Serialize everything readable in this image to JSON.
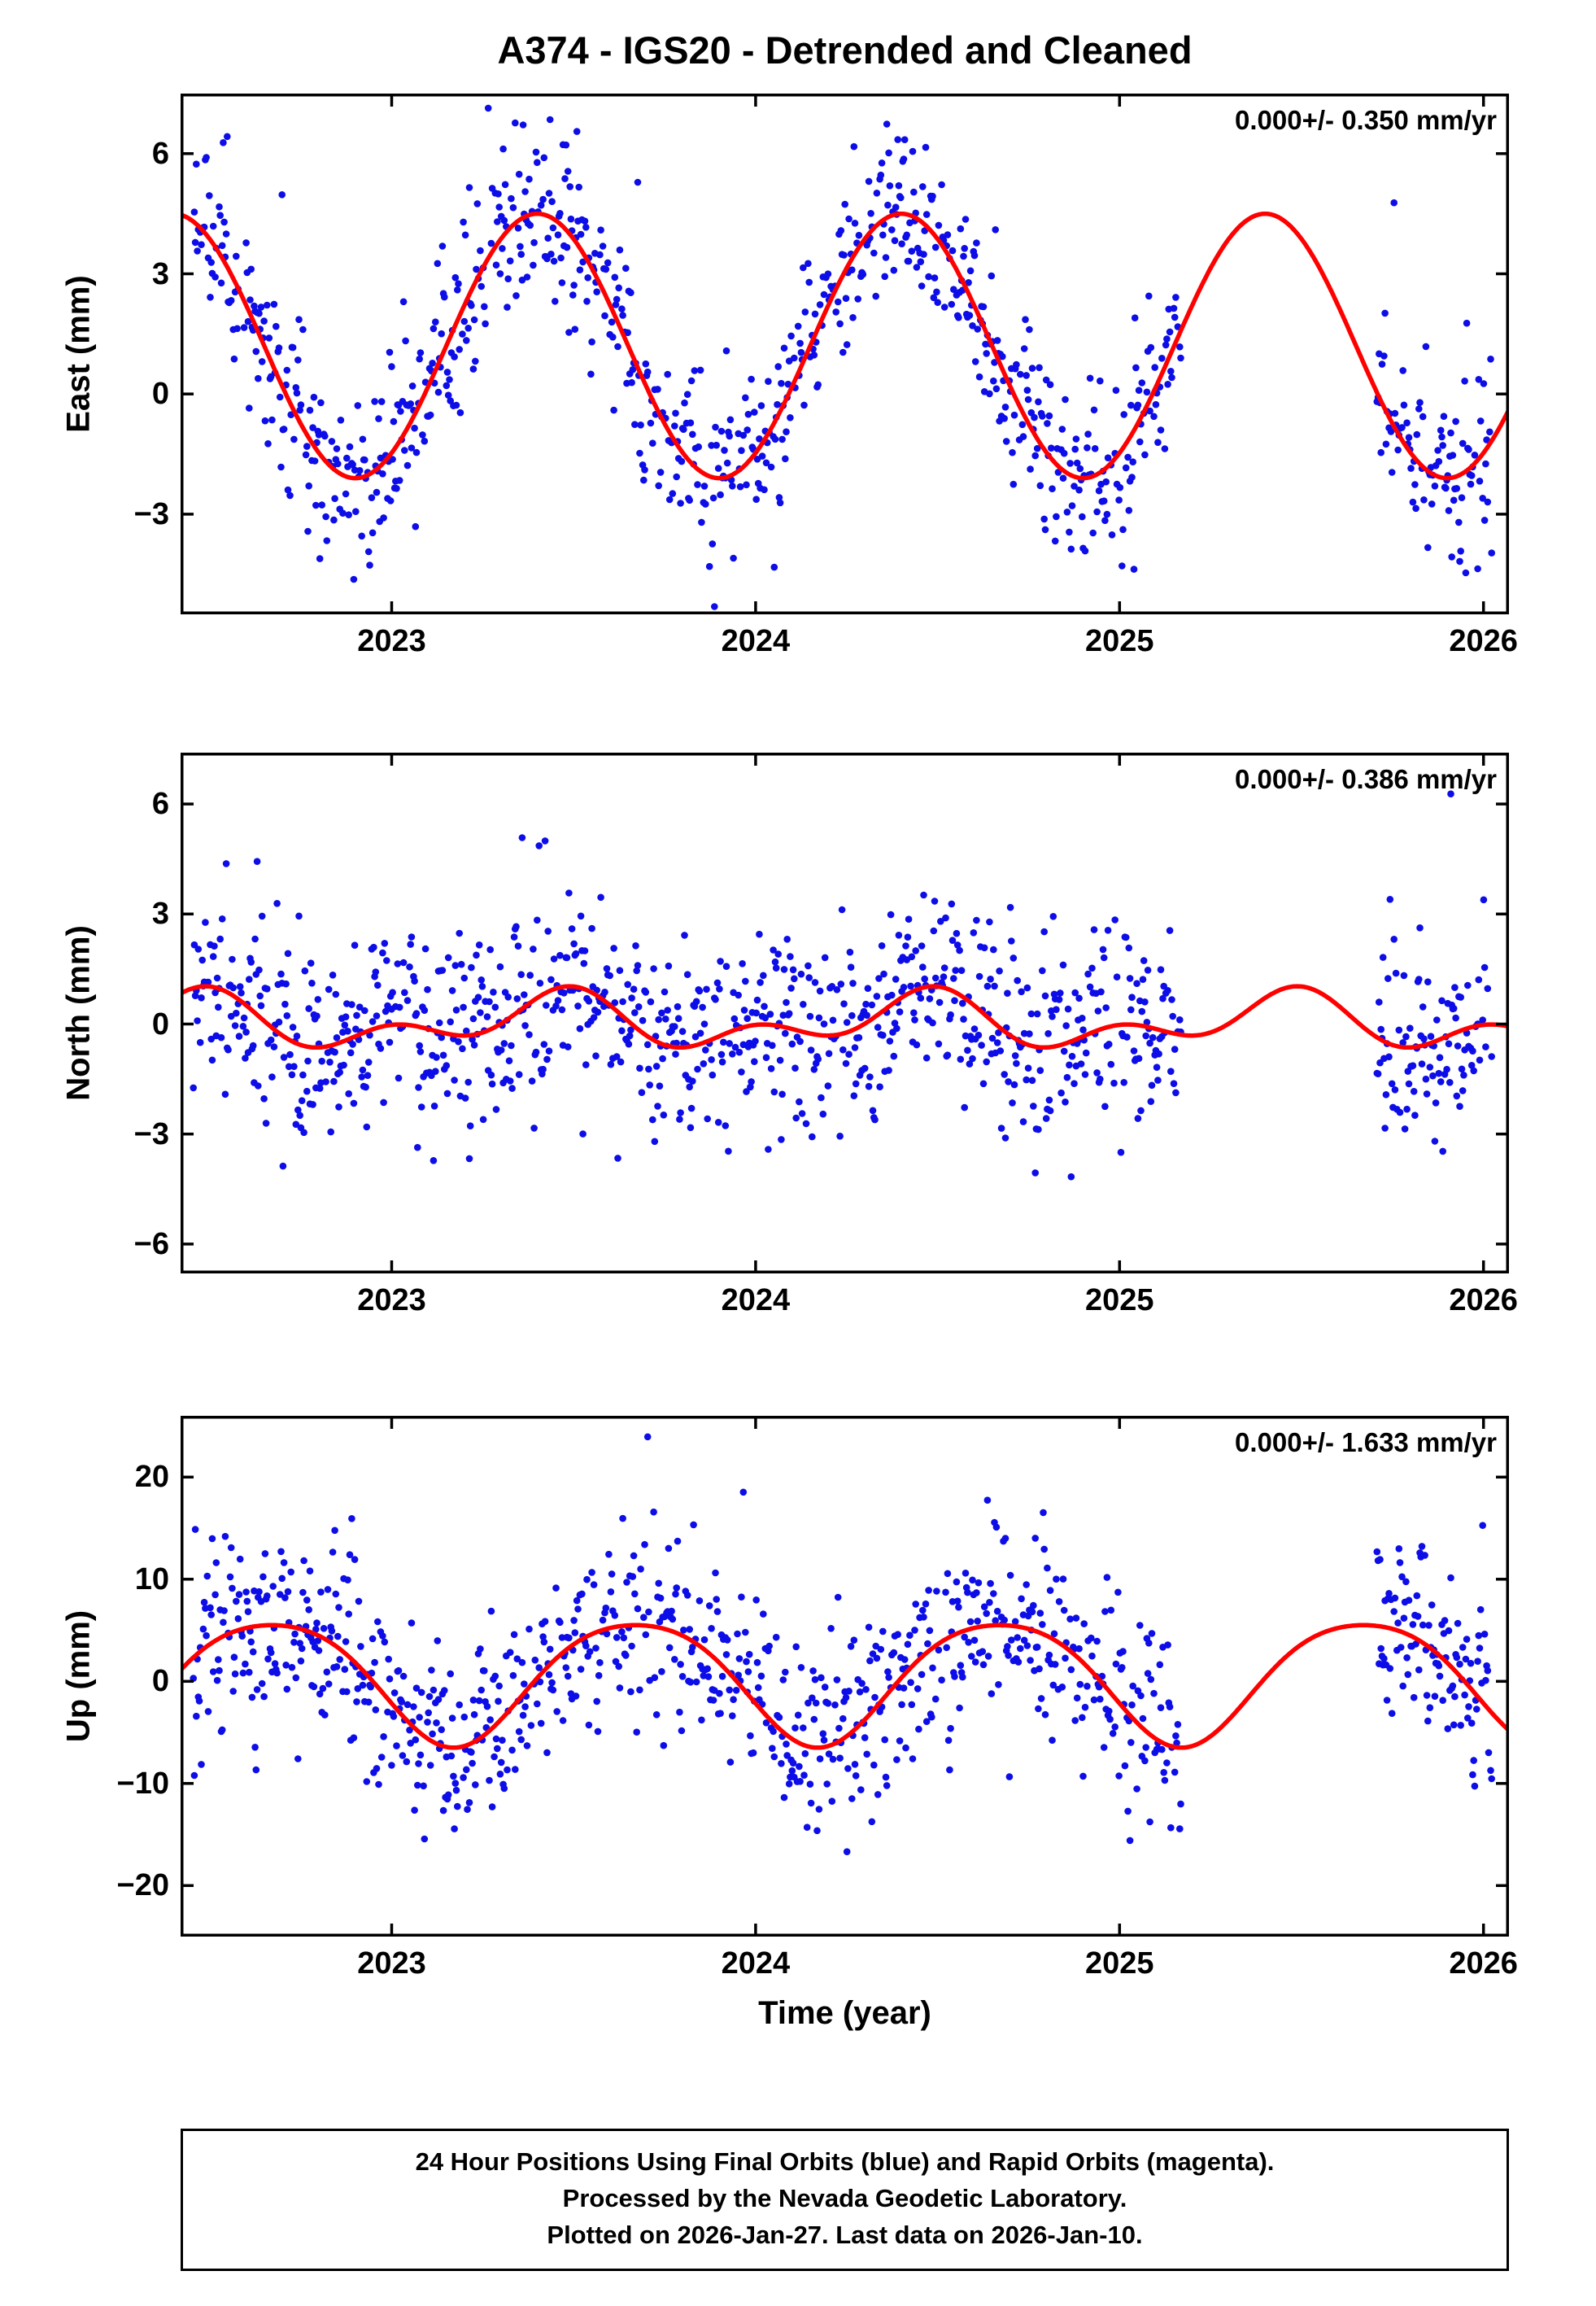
{
  "chart_data": {
    "type": "scatter",
    "title": "A374 - IGS20 - Detrended and Cleaned",
    "xlabel": "Time (year)",
    "x_ticks": [
      2023,
      2024,
      2025,
      2026
    ],
    "x_range": [
      2022.42,
      2026.07
    ],
    "grid": false,
    "colors": {
      "scatter": "#0d0de8",
      "model": "#ff0000",
      "frame": "#000000"
    },
    "series": [
      {
        "name": "24-hour positions (final orbits)",
        "style": "points",
        "color": "#0d0de8"
      },
      {
        "name": "seasonal model fit",
        "style": "line",
        "color": "#ff0000"
      }
    ],
    "data_gaps": [
      [
        2025.17,
        2025.705
      ]
    ],
    "sampling": {
      "start": 2022.455,
      "end": 2026.025,
      "step_days": 1,
      "dropout_rate": 0.16,
      "seed": 74123
    },
    "panels": [
      {
        "id": "east",
        "ylabel": "East (mm)",
        "rate_annotation": "0.000+/- 0.350 mm/yr",
        "yticks": [
          -3,
          0,
          3,
          6
        ],
        "ylim": [
          -5.5,
          7.5
        ],
        "model": {
          "mean": 1.2,
          "annual_amp": 3.3,
          "annual_phase": 0.4,
          "semiannual_amp": 0.0,
          "semiannual_phase": 0.0
        },
        "noise_sigma": 1.15,
        "outlier_rate": 0.02
      },
      {
        "id": "north",
        "ylabel": "North (mm)",
        "rate_annotation": "0.000+/- 0.386 mm/yr",
        "yticks": [
          -6,
          -3,
          0,
          3,
          6
        ],
        "ylim": [
          -6.8,
          7.4
        ],
        "model": {
          "mean": 0.05,
          "annual_amp": 0.55,
          "annual_phase": 0.45,
          "semiannual_amp": 0.45,
          "semiannual_phase": 0.0
        },
        "noise_sigma": 1.35,
        "outlier_rate": 0.02
      },
      {
        "id": "up",
        "ylabel": "Up (mm)",
        "rate_annotation": "0.000+/- 1.633 mm/yr",
        "yticks": [
          -20,
          -10,
          0,
          10,
          20
        ],
        "ylim": [
          -25,
          26
        ],
        "model": {
          "mean": 0.3,
          "annual_amp": 6.0,
          "annual_phase": 0.67,
          "semiannual_amp": 0.8,
          "semiannual_phase": 0.92
        },
        "noise_sigma": 4.6,
        "outlier_rate": 0.02
      }
    ]
  },
  "footer": {
    "lines": [
      "24 Hour Positions Using Final Orbits (blue) and Rapid Orbits (magenta).",
      "Processed by the Nevada Geodetic Laboratory.",
      "Plotted on 2026-Jan-27. Last data on 2026-Jan-10."
    ]
  }
}
